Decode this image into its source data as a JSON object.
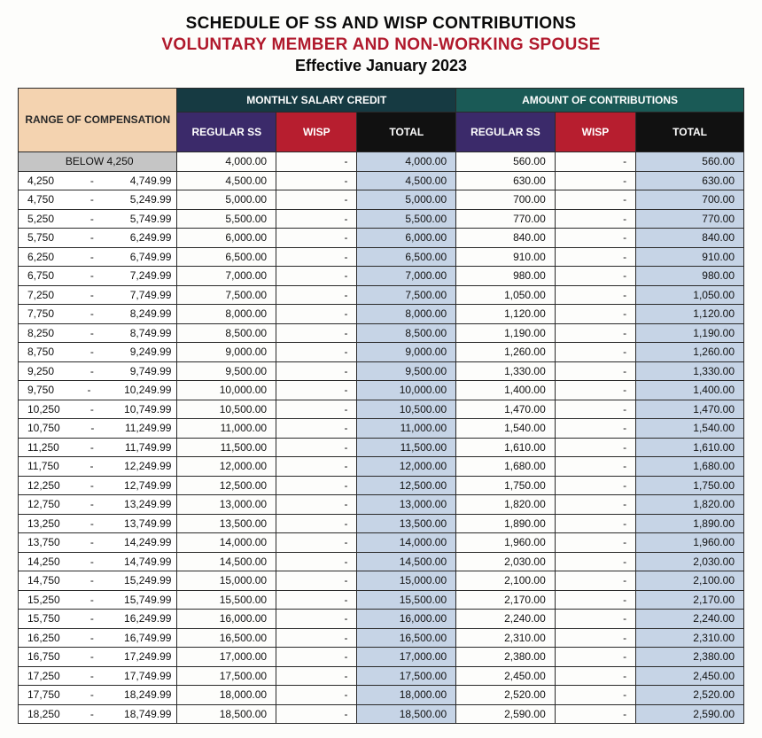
{
  "titles": {
    "line1": "SCHEDULE OF SS AND WISP CONTRIBUTIONS",
    "line2": "VOLUNTARY MEMBER AND NON-WORKING SPOUSE",
    "line3": "Effective January 2023"
  },
  "headers": {
    "range": "RANGE OF COMPENSATION",
    "msc_group": "MONTHLY SALARY CREDIT",
    "aoc_group": "AMOUNT OF CONTRIBUTIONS",
    "regss": "REGULAR SS",
    "wisp": "WISP",
    "total": "TOTAL"
  },
  "colors": {
    "title2": "#b0192c",
    "range_hdr_bg": "#f4d3b0",
    "msc_group_bg": "#163a42",
    "aoc_group_bg": "#1a5a56",
    "regss_bg": "#3b2a6a",
    "wisp_bg": "#b71e2f",
    "total_bg": "#111111",
    "shaded_cell_bg": "#c6d4e6",
    "first_range_bg": "#c5c5c5",
    "border": "#2a2a2a"
  },
  "rows": [
    {
      "range_low": "BELOW 4,250",
      "range_high": "",
      "msc_regss": "4,000.00",
      "msc_wisp": "-",
      "msc_total": "4,000.00",
      "aoc_regss": "560.00",
      "aoc_wisp": "-",
      "aoc_total": "560.00"
    },
    {
      "range_low": "4,250",
      "range_high": "4,749.99",
      "msc_regss": "4,500.00",
      "msc_wisp": "-",
      "msc_total": "4,500.00",
      "aoc_regss": "630.00",
      "aoc_wisp": "-",
      "aoc_total": "630.00"
    },
    {
      "range_low": "4,750",
      "range_high": "5,249.99",
      "msc_regss": "5,000.00",
      "msc_wisp": "-",
      "msc_total": "5,000.00",
      "aoc_regss": "700.00",
      "aoc_wisp": "-",
      "aoc_total": "700.00"
    },
    {
      "range_low": "5,250",
      "range_high": "5,749.99",
      "msc_regss": "5,500.00",
      "msc_wisp": "-",
      "msc_total": "5,500.00",
      "aoc_regss": "770.00",
      "aoc_wisp": "-",
      "aoc_total": "770.00"
    },
    {
      "range_low": "5,750",
      "range_high": "6,249.99",
      "msc_regss": "6,000.00",
      "msc_wisp": "-",
      "msc_total": "6,000.00",
      "aoc_regss": "840.00",
      "aoc_wisp": "-",
      "aoc_total": "840.00"
    },
    {
      "range_low": "6,250",
      "range_high": "6,749.99",
      "msc_regss": "6,500.00",
      "msc_wisp": "-",
      "msc_total": "6,500.00",
      "aoc_regss": "910.00",
      "aoc_wisp": "-",
      "aoc_total": "910.00"
    },
    {
      "range_low": "6,750",
      "range_high": "7,249.99",
      "msc_regss": "7,000.00",
      "msc_wisp": "-",
      "msc_total": "7,000.00",
      "aoc_regss": "980.00",
      "aoc_wisp": "-",
      "aoc_total": "980.00"
    },
    {
      "range_low": "7,250",
      "range_high": "7,749.99",
      "msc_regss": "7,500.00",
      "msc_wisp": "-",
      "msc_total": "7,500.00",
      "aoc_regss": "1,050.00",
      "aoc_wisp": "-",
      "aoc_total": "1,050.00"
    },
    {
      "range_low": "7,750",
      "range_high": "8,249.99",
      "msc_regss": "8,000.00",
      "msc_wisp": "-",
      "msc_total": "8,000.00",
      "aoc_regss": "1,120.00",
      "aoc_wisp": "-",
      "aoc_total": "1,120.00"
    },
    {
      "range_low": "8,250",
      "range_high": "8,749.99",
      "msc_regss": "8,500.00",
      "msc_wisp": "-",
      "msc_total": "8,500.00",
      "aoc_regss": "1,190.00",
      "aoc_wisp": "-",
      "aoc_total": "1,190.00"
    },
    {
      "range_low": "8,750",
      "range_high": "9,249.99",
      "msc_regss": "9,000.00",
      "msc_wisp": "-",
      "msc_total": "9,000.00",
      "aoc_regss": "1,260.00",
      "aoc_wisp": "-",
      "aoc_total": "1,260.00"
    },
    {
      "range_low": "9,250",
      "range_high": "9,749.99",
      "msc_regss": "9,500.00",
      "msc_wisp": "-",
      "msc_total": "9,500.00",
      "aoc_regss": "1,330.00",
      "aoc_wisp": "-",
      "aoc_total": "1,330.00"
    },
    {
      "range_low": "9,750",
      "range_high": "10,249.99",
      "msc_regss": "10,000.00",
      "msc_wisp": "-",
      "msc_total": "10,000.00",
      "aoc_regss": "1,400.00",
      "aoc_wisp": "-",
      "aoc_total": "1,400.00"
    },
    {
      "range_low": "10,250",
      "range_high": "10,749.99",
      "msc_regss": "10,500.00",
      "msc_wisp": "-",
      "msc_total": "10,500.00",
      "aoc_regss": "1,470.00",
      "aoc_wisp": "-",
      "aoc_total": "1,470.00"
    },
    {
      "range_low": "10,750",
      "range_high": "11,249.99",
      "msc_regss": "11,000.00",
      "msc_wisp": "-",
      "msc_total": "11,000.00",
      "aoc_regss": "1,540.00",
      "aoc_wisp": "-",
      "aoc_total": "1,540.00"
    },
    {
      "range_low": "11,250",
      "range_high": "11,749.99",
      "msc_regss": "11,500.00",
      "msc_wisp": "-",
      "msc_total": "11,500.00",
      "aoc_regss": "1,610.00",
      "aoc_wisp": "-",
      "aoc_total": "1,610.00"
    },
    {
      "range_low": "11,750",
      "range_high": "12,249.99",
      "msc_regss": "12,000.00",
      "msc_wisp": "-",
      "msc_total": "12,000.00",
      "aoc_regss": "1,680.00",
      "aoc_wisp": "-",
      "aoc_total": "1,680.00"
    },
    {
      "range_low": "12,250",
      "range_high": "12,749.99",
      "msc_regss": "12,500.00",
      "msc_wisp": "-",
      "msc_total": "12,500.00",
      "aoc_regss": "1,750.00",
      "aoc_wisp": "-",
      "aoc_total": "1,750.00"
    },
    {
      "range_low": "12,750",
      "range_high": "13,249.99",
      "msc_regss": "13,000.00",
      "msc_wisp": "-",
      "msc_total": "13,000.00",
      "aoc_regss": "1,820.00",
      "aoc_wisp": "-",
      "aoc_total": "1,820.00"
    },
    {
      "range_low": "13,250",
      "range_high": "13,749.99",
      "msc_regss": "13,500.00",
      "msc_wisp": "-",
      "msc_total": "13,500.00",
      "aoc_regss": "1,890.00",
      "aoc_wisp": "-",
      "aoc_total": "1,890.00"
    },
    {
      "range_low": "13,750",
      "range_high": "14,249.99",
      "msc_regss": "14,000.00",
      "msc_wisp": "-",
      "msc_total": "14,000.00",
      "aoc_regss": "1,960.00",
      "aoc_wisp": "-",
      "aoc_total": "1,960.00"
    },
    {
      "range_low": "14,250",
      "range_high": "14,749.99",
      "msc_regss": "14,500.00",
      "msc_wisp": "-",
      "msc_total": "14,500.00",
      "aoc_regss": "2,030.00",
      "aoc_wisp": "-",
      "aoc_total": "2,030.00"
    },
    {
      "range_low": "14,750",
      "range_high": "15,249.99",
      "msc_regss": "15,000.00",
      "msc_wisp": "-",
      "msc_total": "15,000.00",
      "aoc_regss": "2,100.00",
      "aoc_wisp": "-",
      "aoc_total": "2,100.00"
    },
    {
      "range_low": "15,250",
      "range_high": "15,749.99",
      "msc_regss": "15,500.00",
      "msc_wisp": "-",
      "msc_total": "15,500.00",
      "aoc_regss": "2,170.00",
      "aoc_wisp": "-",
      "aoc_total": "2,170.00"
    },
    {
      "range_low": "15,750",
      "range_high": "16,249.99",
      "msc_regss": "16,000.00",
      "msc_wisp": "-",
      "msc_total": "16,000.00",
      "aoc_regss": "2,240.00",
      "aoc_wisp": "-",
      "aoc_total": "2,240.00"
    },
    {
      "range_low": "16,250",
      "range_high": "16,749.99",
      "msc_regss": "16,500.00",
      "msc_wisp": "-",
      "msc_total": "16,500.00",
      "aoc_regss": "2,310.00",
      "aoc_wisp": "-",
      "aoc_total": "2,310.00"
    },
    {
      "range_low": "16,750",
      "range_high": "17,249.99",
      "msc_regss": "17,000.00",
      "msc_wisp": "-",
      "msc_total": "17,000.00",
      "aoc_regss": "2,380.00",
      "aoc_wisp": "-",
      "aoc_total": "2,380.00"
    },
    {
      "range_low": "17,250",
      "range_high": "17,749.99",
      "msc_regss": "17,500.00",
      "msc_wisp": "-",
      "msc_total": "17,500.00",
      "aoc_regss": "2,450.00",
      "aoc_wisp": "-",
      "aoc_total": "2,450.00"
    },
    {
      "range_low": "17,750",
      "range_high": "18,249.99",
      "msc_regss": "18,000.00",
      "msc_wisp": "-",
      "msc_total": "18,000.00",
      "aoc_regss": "2,520.00",
      "aoc_wisp": "-",
      "aoc_total": "2,520.00"
    },
    {
      "range_low": "18,250",
      "range_high": "18,749.99",
      "msc_regss": "18,500.00",
      "msc_wisp": "-",
      "msc_total": "18,500.00",
      "aoc_regss": "2,590.00",
      "aoc_wisp": "-",
      "aoc_total": "2,590.00"
    }
  ]
}
